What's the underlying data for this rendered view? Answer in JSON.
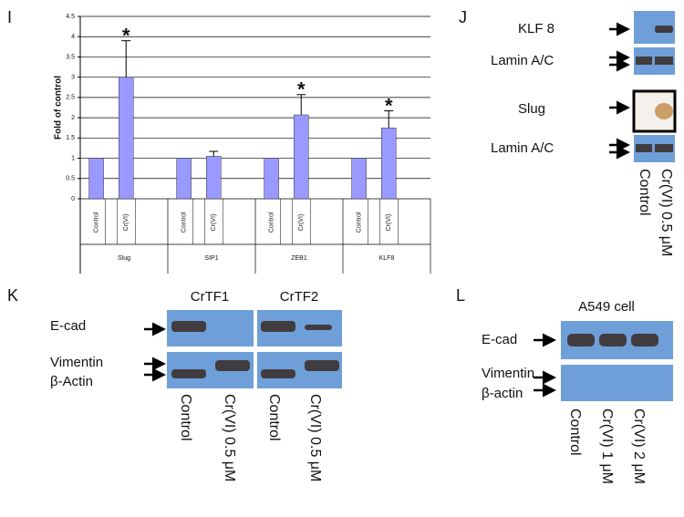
{
  "chart_data": {
    "type": "bar",
    "panel_label": "I",
    "y_label": "Fold of control",
    "categories": [
      "Control",
      "Cr(VI)",
      "Control",
      "Cr(VI)",
      "Control",
      "Cr(VI)",
      "Control",
      "Cr(VI)"
    ],
    "groups": [
      "Slug",
      "SIP1",
      "ZEB1",
      "KLF8"
    ],
    "values": [
      1,
      3.0,
      1,
      1.05,
      1,
      2.07,
      1,
      1.75
    ],
    "errors": [
      null,
      0.9,
      null,
      0.12,
      null,
      0.5,
      null,
      0.42
    ],
    "significance": [
      null,
      "*",
      null,
      null,
      null,
      "*",
      null,
      "*"
    ],
    "color": "#9999ff",
    "ylim": [
      0,
      4.5
    ],
    "yticks": [
      0,
      0.5,
      1,
      1.5,
      2,
      2.5,
      3,
      3.5,
      4,
      4.5
    ],
    "grid": true
  },
  "panels": [
    {
      "label": "J",
      "rows": [
        "KLF 8",
        "Lamin A/C",
        "Slug",
        "Lamin A/C"
      ],
      "lanes": [
        "Control",
        "Cr(VI) 0.5 μM"
      ]
    },
    {
      "label": "K",
      "groups": [
        "CrTF1",
        "CrTF2"
      ],
      "rows": [
        "E-cad",
        "Vimentin",
        "β-Actin"
      ],
      "lanes": [
        "Control",
        "Cr(VI) 0.5 μM",
        "Control",
        "Cr(VI) 0.5 μM"
      ]
    },
    {
      "label": "L",
      "title": "A549 cell",
      "rows": [
        "E-cad",
        "Vimentin",
        "β-actin"
      ],
      "lanes": [
        "Control",
        "Cr(VI) 1 μM",
        "Cr(VI) 2 μM"
      ]
    }
  ]
}
